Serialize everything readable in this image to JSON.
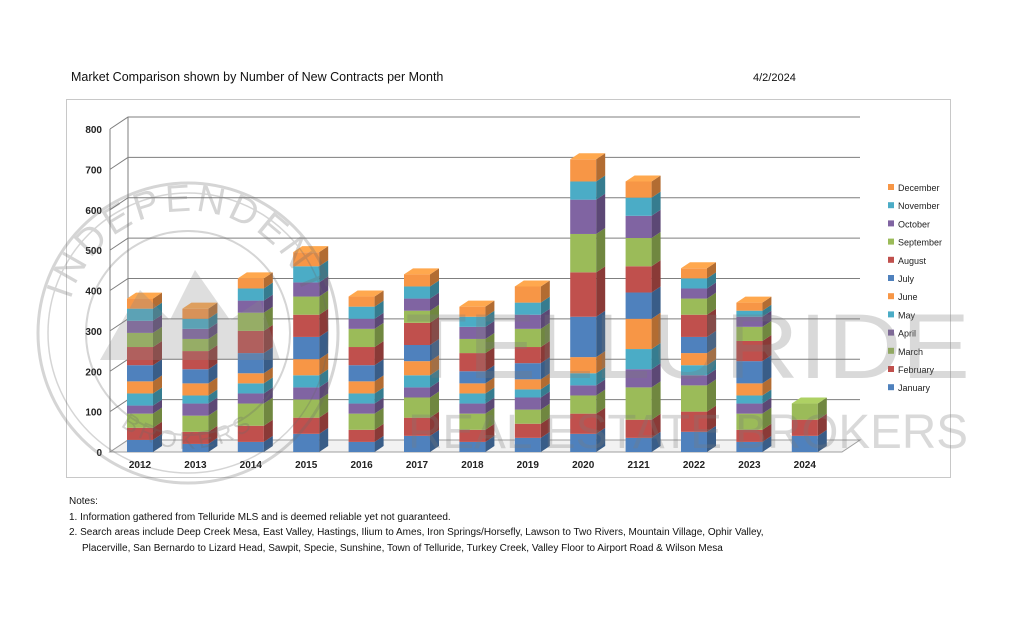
{
  "header": {
    "title": "Market Comparison shown by Number of New Contracts per Month",
    "date": "4/2/2024"
  },
  "watermark": {
    "seal_top_text": "INDEPENDENT",
    "seal_bottom_text": "BROKERS",
    "brand_line1": "TELLURIDE",
    "brand_line2": "REAL ESTATE BROKERS"
  },
  "notes": {
    "heading": "Notes:",
    "line1": "1. Information gathered from Telluride MLS and is deemed reliable yet not guaranteed.",
    "line2a": "2. Search areas include Deep Creek Mesa, East Valley, Hastings, Ilium to Ames, Iron Springs/Horsefly, Lawson to Two Rivers, Mountain Village, Ophir Valley,",
    "line2b": "Placerville, San Bernardo to Lizard Head, Sawpit, Specie, Sunshine, Town of Telluride, Turkey Creek, Valley Floor to Airport Road & Wilson Mesa"
  },
  "chart_data": {
    "type": "bar",
    "stacked": true,
    "title": "Market Comparison shown by Number of New Contracts per Month",
    "xlabel": "",
    "ylabel": "",
    "ylim": [
      0,
      800
    ],
    "yticks": [
      0,
      100,
      200,
      300,
      400,
      500,
      600,
      700,
      800
    ],
    "legend_position": "right",
    "categories": [
      "2012",
      "2013",
      "2014",
      "2015",
      "2016",
      "2017",
      "2018",
      "2019",
      "2020",
      "2121",
      "2022",
      "2023",
      "2024"
    ],
    "series": [
      {
        "name": "January",
        "color": "#4F81BD",
        "values": [
          30,
          20,
          25,
          45,
          25,
          40,
          25,
          35,
          45,
          35,
          50,
          25,
          40
        ]
      },
      {
        "name": "February",
        "color": "#C0504D",
        "values": [
          30,
          30,
          40,
          40,
          30,
          45,
          30,
          35,
          50,
          45,
          50,
          30,
          40
        ]
      },
      {
        "name": "March",
        "color": "#9BBB59",
        "values": [
          35,
          40,
          55,
          45,
          40,
          50,
          40,
          35,
          45,
          80,
          65,
          40,
          40
        ]
      },
      {
        "name": "April",
        "color": "#8064A2",
        "values": [
          20,
          30,
          25,
          30,
          25,
          25,
          25,
          30,
          25,
          45,
          25,
          25,
          0
        ]
      },
      {
        "name": "May",
        "color": "#4BACC6",
        "values": [
          30,
          20,
          25,
          30,
          25,
          30,
          25,
          20,
          30,
          50,
          25,
          20,
          0
        ]
      },
      {
        "name": "June",
        "color": "#F79646",
        "values": [
          30,
          30,
          25,
          40,
          30,
          35,
          25,
          25,
          40,
          75,
          30,
          30,
          0
        ]
      },
      {
        "name": "July",
        "color": "#4F81BD",
        "values": [
          40,
          35,
          50,
          55,
          40,
          40,
          30,
          40,
          100,
          65,
          40,
          55,
          0
        ]
      },
      {
        "name": "August",
        "color": "#C0504D",
        "values": [
          45,
          45,
          55,
          55,
          45,
          55,
          45,
          40,
          110,
          65,
          55,
          50,
          0
        ]
      },
      {
        "name": "September",
        "color": "#9BBB59",
        "values": [
          35,
          30,
          45,
          45,
          45,
          30,
          35,
          45,
          95,
          70,
          40,
          35,
          0
        ]
      },
      {
        "name": "October",
        "color": "#8064A2",
        "values": [
          30,
          25,
          30,
          35,
          25,
          30,
          30,
          35,
          85,
          55,
          25,
          25,
          0
        ]
      },
      {
        "name": "November",
        "color": "#4BACC6",
        "values": [
          30,
          25,
          30,
          40,
          30,
          30,
          25,
          30,
          45,
          45,
          25,
          15,
          0
        ]
      },
      {
        "name": "December",
        "color": "#F79646",
        "values": [
          25,
          25,
          25,
          35,
          25,
          30,
          25,
          40,
          55,
          40,
          25,
          20,
          0
        ]
      }
    ]
  }
}
